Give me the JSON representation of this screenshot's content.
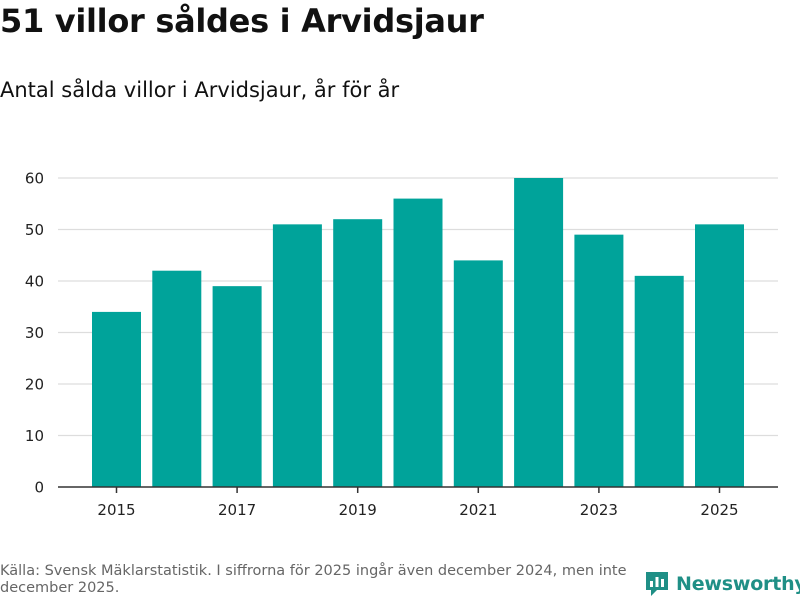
{
  "title": "51 villor såldes i Arvidsjaur",
  "subtitle": "Antal sålda villor i Arvidsjaur, år för år",
  "source": "Källa: Svensk Mäklarstatistik. I siffrorna för 2025 ingår även december 2024, men inte december 2025.",
  "logo": {
    "text": "Newsworthy"
  },
  "colors": {
    "bar": "#00a39a",
    "grid": "#dddddd",
    "axis": "#333333",
    "logo": "#1f8f86"
  },
  "chart_data": {
    "type": "bar",
    "title": "51 villor såldes i Arvidsjaur",
    "subtitle": "Antal sålda villor i Arvidsjaur, år för år",
    "xlabel": "",
    "ylabel": "",
    "categories": [
      "2015",
      "2016",
      "2017",
      "2018",
      "2019",
      "2020",
      "2021",
      "2022",
      "2023",
      "2024",
      "2025"
    ],
    "values": [
      34,
      42,
      39,
      51,
      52,
      56,
      44,
      60,
      49,
      41,
      51
    ],
    "ylim": [
      0,
      60
    ],
    "yticks": [
      "0",
      "10",
      "20",
      "30",
      "40",
      "50",
      "60"
    ],
    "xtick_labels": [
      "2015",
      "2017",
      "2019",
      "2021",
      "2023",
      "2025"
    ],
    "grid": true,
    "legend": "none"
  }
}
